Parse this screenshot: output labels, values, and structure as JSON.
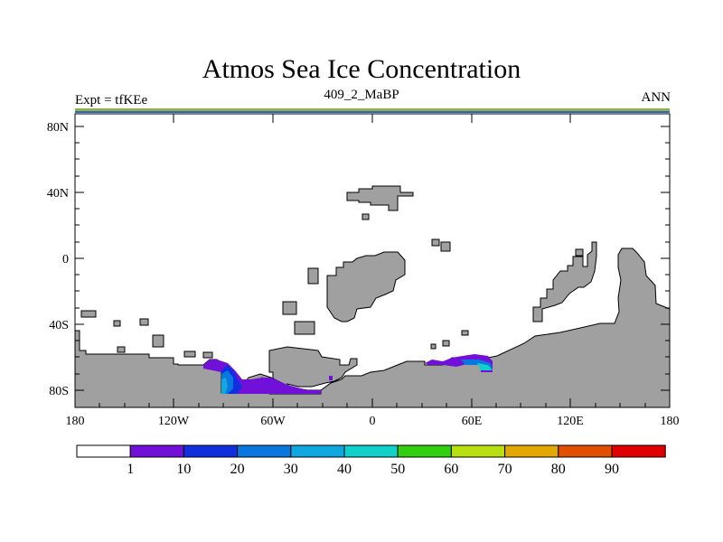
{
  "title": "Atmos Sea Ice Concentration",
  "subtitle_left": "Expt = tfKEe",
  "subtitle_center": "409_2_MaBP",
  "subtitle_right": "ANN",
  "axes": {
    "lon_ticks": [
      "180",
      "120W",
      "60W",
      "0",
      "60E",
      "120E",
      "180"
    ],
    "lat_ticks": [
      "80N",
      "40N",
      "0",
      "40S",
      "80S"
    ]
  },
  "colorbar": {
    "labels": [
      "1",
      "10",
      "20",
      "30",
      "40",
      "50",
      "60",
      "70",
      "80",
      "90"
    ],
    "colors": [
      "#ffffff",
      "#7010d8",
      "#1030e0",
      "#0878e0",
      "#10a8e0",
      "#10d0c8",
      "#30d010",
      "#b8e010",
      "#e0a800",
      "#e05000",
      "#e00000"
    ]
  },
  "colors": {
    "land": "#a0a0a0",
    "ocean": "#ffffff"
  }
}
